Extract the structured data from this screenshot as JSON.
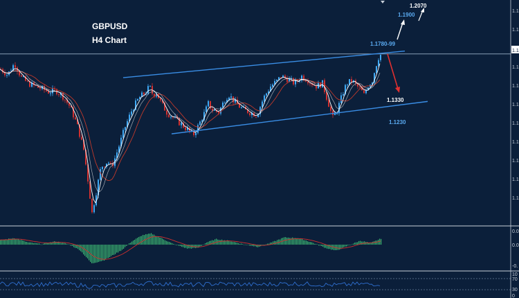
{
  "header": {
    "symbol": "GBPUSD",
    "timeframe": "H4 Chart"
  },
  "colors": {
    "background": "#0b1f3a",
    "bull_candle": "#3fa9f5",
    "bear_candle": "#d0302f",
    "channel": "#3a8ee6",
    "ma_fast": "#ffffff",
    "ma_slow": "#c0392b",
    "histogram": "#3cb371",
    "signal": "#d0302f",
    "rsi_line": "#2f6fd0",
    "annotation_blue": "#5aaaf0",
    "annotation_white": "#ffffff",
    "arrow_red": "#e03030"
  },
  "annotations": {
    "level_resistance": "1.1780-99",
    "level_1900": "1.1900",
    "level_2070": "1.2070",
    "level_1330": "1.1330",
    "level_1230": "1.1230"
  },
  "axis": {
    "price_ticks": [
      "1.1",
      "1.1",
      "1.1",
      "1.1",
      "1.1",
      "1.1",
      "1.1",
      "1.1",
      "1.1",
      "1.1",
      "1.1"
    ],
    "current_price_label": "1.1",
    "macd_ticks": [
      "0.0",
      "0.0",
      "-0."
    ],
    "rsi_ticks": [
      "10",
      "70",
      "30",
      "0"
    ]
  },
  "chart_data": {
    "type": "candlestick",
    "y_range": [
      1.06,
      1.215
    ],
    "current_price": 1.1785,
    "price_path": [
      [
        0,
        1.168
      ],
      [
        10,
        1.164
      ],
      [
        20,
        1.172
      ],
      [
        30,
        1.162
      ],
      [
        40,
        1.158
      ],
      [
        50,
        1.156
      ],
      [
        60,
        1.154
      ],
      [
        70,
        1.152
      ],
      [
        80,
        1.153
      ],
      [
        90,
        1.149
      ],
      [
        100,
        1.142
      ],
      [
        110,
        1.13
      ],
      [
        120,
        1.112
      ],
      [
        125,
        1.095
      ],
      [
        132,
        1.068
      ],
      [
        137,
        1.08
      ],
      [
        145,
        1.1
      ],
      [
        155,
        1.104
      ],
      [
        160,
        1.1
      ],
      [
        165,
        1.106
      ],
      [
        172,
        1.116
      ],
      [
        180,
        1.128
      ],
      [
        190,
        1.14
      ],
      [
        200,
        1.148
      ],
      [
        210,
        1.152
      ],
      [
        215,
        1.156
      ],
      [
        220,
        1.15
      ],
      [
        225,
        1.152
      ],
      [
        230,
        1.146
      ],
      [
        240,
        1.138
      ],
      [
        250,
        1.134
      ],
      [
        260,
        1.13
      ],
      [
        270,
        1.126
      ],
      [
        278,
        1.122
      ],
      [
        285,
        1.128
      ],
      [
        295,
        1.138
      ],
      [
        300,
        1.144
      ],
      [
        305,
        1.14
      ],
      [
        315,
        1.138
      ],
      [
        325,
        1.148
      ],
      [
        330,
        1.15
      ],
      [
        340,
        1.144
      ],
      [
        350,
        1.14
      ],
      [
        360,
        1.138
      ],
      [
        370,
        1.136
      ],
      [
        380,
        1.148
      ],
      [
        390,
        1.156
      ],
      [
        400,
        1.16
      ],
      [
        405,
        1.163
      ],
      [
        415,
        1.161
      ],
      [
        425,
        1.158
      ],
      [
        435,
        1.163
      ],
      [
        445,
        1.16
      ],
      [
        455,
        1.156
      ],
      [
        465,
        1.158
      ],
      [
        475,
        1.142
      ],
      [
        480,
        1.134
      ],
      [
        486,
        1.139
      ],
      [
        495,
        1.152
      ],
      [
        500,
        1.158
      ],
      [
        508,
        1.16
      ],
      [
        515,
        1.156
      ],
      [
        520,
        1.154
      ],
      [
        525,
        1.15
      ],
      [
        530,
        1.156
      ],
      [
        537,
        1.16
      ],
      [
        542,
        1.17
      ],
      [
        546,
        1.176
      ],
      [
        550,
        1.1785
      ]
    ],
    "channel_upper": {
      "start": [
        178,
        1.162
      ],
      "end": [
        585,
        1.1805
      ]
    },
    "channel_lower": {
      "start": [
        248,
        1.123
      ],
      "end": [
        618,
        1.1455
      ]
    },
    "macd_path": [
      [
        0,
        0.4
      ],
      [
        20,
        0.6
      ],
      [
        40,
        0.2
      ],
      [
        60,
        0.05
      ],
      [
        80,
        0.3
      ],
      [
        100,
        0.0
      ],
      [
        115,
        -0.5
      ],
      [
        125,
        -1.2
      ],
      [
        132,
        -1.7
      ],
      [
        150,
        -1.4
      ],
      [
        175,
        -0.5
      ],
      [
        190,
        0.3
      ],
      [
        205,
        0.85
      ],
      [
        218,
        1.0
      ],
      [
        232,
        0.6
      ],
      [
        250,
        0.05
      ],
      [
        270,
        -0.35
      ],
      [
        285,
        -0.3
      ],
      [
        298,
        0.2
      ],
      [
        312,
        0.5
      ],
      [
        330,
        0.35
      ],
      [
        350,
        0.05
      ],
      [
        372,
        -0.2
      ],
      [
        390,
        0.15
      ],
      [
        410,
        0.65
      ],
      [
        430,
        0.6
      ],
      [
        450,
        0.2
      ],
      [
        470,
        -0.3
      ],
      [
        485,
        -0.55
      ],
      [
        500,
        -0.15
      ],
      [
        520,
        0.35
      ],
      [
        535,
        0.15
      ],
      [
        550,
        0.55
      ]
    ]
  }
}
